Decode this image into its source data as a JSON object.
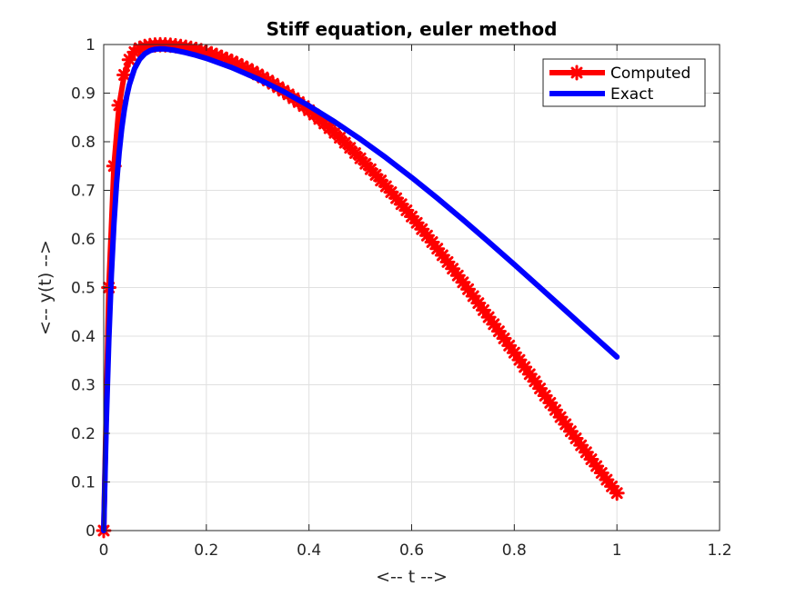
{
  "chart_data": {
    "type": "line",
    "title": "Stiff equation, euler method",
    "xlabel": "<-- t -->",
    "ylabel": "<-- y(t) -->",
    "xlim": [
      0,
      1.2
    ],
    "ylim": [
      0,
      1
    ],
    "xticks": [
      "0",
      "0.2",
      "0.4",
      "0.6",
      "0.8",
      "1",
      "1.2"
    ],
    "yticks": [
      "0",
      "0.1",
      "0.2",
      "0.3",
      "0.4",
      "0.5",
      "0.6",
      "0.7",
      "0.8",
      "0.9",
      "1"
    ],
    "grid": true,
    "legend_position": "top-right",
    "series": [
      {
        "name": "Computed",
        "color": "#ff0000",
        "marker": "asterisk",
        "x": [
          0,
          0.01,
          0.02,
          0.03,
          0.04,
          0.05,
          0.06,
          0.07,
          0.08,
          0.09,
          0.1,
          0.11,
          0.12,
          0.13,
          0.14,
          0.15,
          0.16,
          0.17,
          0.18,
          0.19,
          0.2,
          0.21,
          0.22,
          0.23,
          0.24,
          0.25,
          0.26,
          0.27,
          0.28,
          0.29,
          0.3,
          0.31,
          0.32,
          0.33,
          0.34,
          0.35,
          0.36,
          0.37,
          0.38,
          0.39,
          0.4,
          0.41,
          0.42,
          0.43,
          0.44,
          0.45,
          0.46,
          0.47,
          0.48,
          0.49,
          0.5,
          0.51,
          0.52,
          0.53,
          0.54,
          0.55,
          0.56,
          0.57,
          0.58,
          0.59,
          0.6,
          0.61,
          0.62,
          0.63,
          0.64,
          0.65,
          0.66,
          0.67,
          0.68,
          0.69,
          0.7,
          0.71,
          0.72,
          0.73,
          0.74,
          0.75,
          0.76,
          0.77,
          0.78,
          0.79,
          0.8,
          0.81,
          0.82,
          0.83,
          0.84,
          0.85,
          0.86,
          0.87,
          0.88,
          0.89,
          0.9,
          0.91,
          0.92,
          0.93,
          0.94,
          0.95,
          0.96,
          0.97,
          0.98,
          0.99,
          1.0
        ],
        "y": [
          0,
          0.5,
          0.75,
          0.875,
          0.9375,
          0.9688,
          0.9844,
          0.9922,
          0.9961,
          0.998,
          0.999,
          0.9995,
          0.9993,
          0.9985,
          0.9974,
          0.996,
          0.9943,
          0.9922,
          0.9899,
          0.9873,
          0.9843,
          0.981,
          0.9775,
          0.9736,
          0.9695,
          0.965,
          0.9603,
          0.9553,
          0.95,
          0.9444,
          0.9385,
          0.9323,
          0.9259,
          0.9192,
          0.9122,
          0.9049,
          0.8974,
          0.8896,
          0.8816,
          0.8733,
          0.8647,
          0.8559,
          0.8468,
          0.8375,
          0.8279,
          0.8182,
          0.8081,
          0.7979,
          0.7874,
          0.7767,
          0.7658,
          0.7547,
          0.7434,
          0.7319,
          0.7202,
          0.7083,
          0.6962,
          0.6839,
          0.6715,
          0.6589,
          0.6461,
          0.6332,
          0.6201,
          0.6069,
          0.5935,
          0.58,
          0.5664,
          0.5526,
          0.5388,
          0.5248,
          0.5107,
          0.4966,
          0.4823,
          0.468,
          0.4536,
          0.4391,
          0.4246,
          0.41,
          0.3953,
          0.3807,
          0.366,
          0.3512,
          0.3365,
          0.3217,
          0.307,
          0.2922,
          0.2775,
          0.2628,
          0.2481,
          0.2334,
          0.2188,
          0.2043,
          0.1898,
          0.1754,
          0.1611,
          0.1468,
          0.1327,
          0.1186,
          0.1047,
          0.0909,
          0.0772
        ]
      },
      {
        "name": "Exact",
        "color": "#0000ff",
        "marker": "none",
        "x": [
          0,
          0.005,
          0.01,
          0.015,
          0.02,
          0.025,
          0.03,
          0.035,
          0.04,
          0.045,
          0.05,
          0.06,
          0.07,
          0.08,
          0.09,
          0.1,
          0.11,
          0.12,
          0.14,
          0.16,
          0.18,
          0.2,
          0.25,
          0.3,
          0.35,
          0.4,
          0.45,
          0.5,
          0.55,
          0.6,
          0.65,
          0.7,
          0.75,
          0.8,
          0.85,
          0.9,
          0.95,
          1.0
        ],
        "y": [
          0,
          0.2212,
          0.3935,
          0.5276,
          0.6321,
          0.7135,
          0.7769,
          0.8262,
          0.8646,
          0.8944,
          0.9175,
          0.9501,
          0.9696,
          0.981,
          0.9873,
          0.9903,
          0.9912,
          0.9908,
          0.9878,
          0.9833,
          0.9779,
          0.9716,
          0.9524,
          0.9295,
          0.9034,
          0.8738,
          0.841,
          0.8053,
          0.7671,
          0.7265,
          0.6839,
          0.6396,
          0.594,
          0.5474,
          0.5001,
          0.4525,
          0.4048,
          0.3573
        ]
      }
    ]
  }
}
